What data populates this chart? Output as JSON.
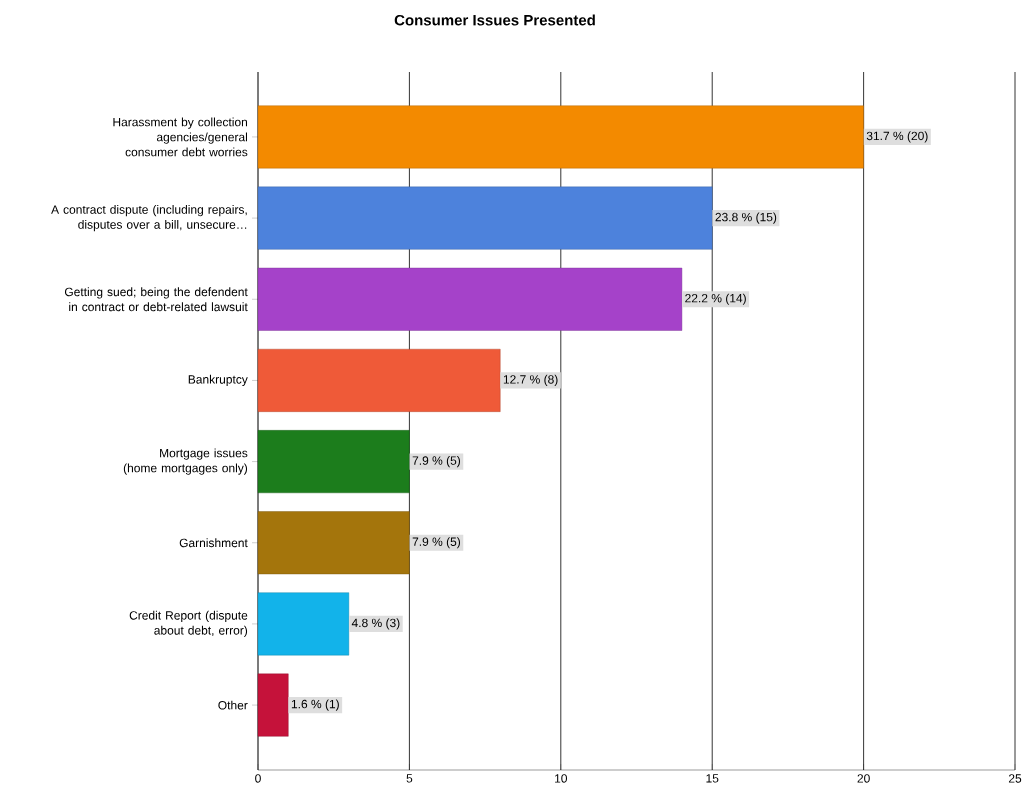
{
  "chart_data": {
    "type": "bar",
    "orientation": "horizontal",
    "title": "Consumer Issues Presented",
    "categories": [
      "Harassment by collection agencies/general consumer debt worries",
      "A contract dispute (including repairs, disputes over a bill, unsecure…",
      "Getting sued; being the defendent in contract or debt-related lawsuit",
      "Bankruptcy",
      "Mortgage issues (home mortgages only)",
      "Garnishment",
      "Credit Report (dispute about debt, error)",
      "Other"
    ],
    "values": [
      20,
      15,
      14,
      8,
      5,
      5,
      3,
      1
    ],
    "colors": [
      "#f38a00",
      "#4d82dc",
      "#a542c9",
      "#ef5a38",
      "#1c7d1c",
      "#a4750c",
      "#12b3ea",
      "#c5123a"
    ],
    "value_labels": [
      "31.7 % (20)",
      "23.8 % (15)",
      "22.2 % (14)",
      "12.7 % (8)",
      "7.9 % (5)",
      "7.9 % (5)",
      "4.8 % (3)",
      "1.6 % (1)"
    ],
    "xlim": [
      0,
      25
    ],
    "xticks": [
      0,
      5,
      10,
      15,
      20,
      25
    ],
    "grid": "x"
  }
}
